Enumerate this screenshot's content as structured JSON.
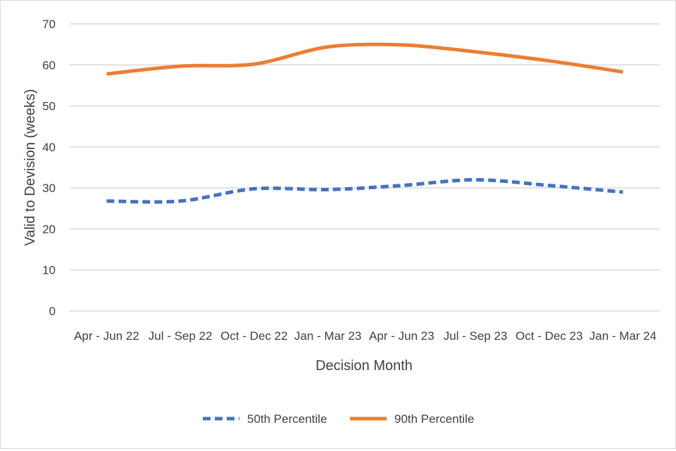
{
  "chart_data": {
    "type": "line",
    "title": "",
    "xlabel": "Decision Month",
    "ylabel": "Valid to Devision (weeks)",
    "ylim": [
      0,
      70
    ],
    "yticks": [
      "0",
      "10",
      "20",
      "30",
      "40",
      "50",
      "60",
      "70"
    ],
    "grid": true,
    "legend_position": "bottom",
    "categories": [
      "Apr - Jun 22",
      "Jul - Sep 22",
      "Oct - Dec 22",
      "Jan - Mar 23",
      "Apr - Jun 23",
      "Jul - Sep 23",
      "Oct - Dec 23",
      "Jan - Mar 24"
    ],
    "series": [
      {
        "name": "50th Percentile",
        "color": "#4472C4",
        "style": "dashed",
        "values": [
          26.8,
          26.8,
          29.8,
          29.6,
          30.6,
          32.0,
          30.6,
          29.0
        ]
      },
      {
        "name": "90th Percentile",
        "color": "#ED7D31",
        "style": "solid",
        "values": [
          57.8,
          59.7,
          60.2,
          64.4,
          64.9,
          63.2,
          61.0,
          58.3
        ]
      }
    ]
  }
}
